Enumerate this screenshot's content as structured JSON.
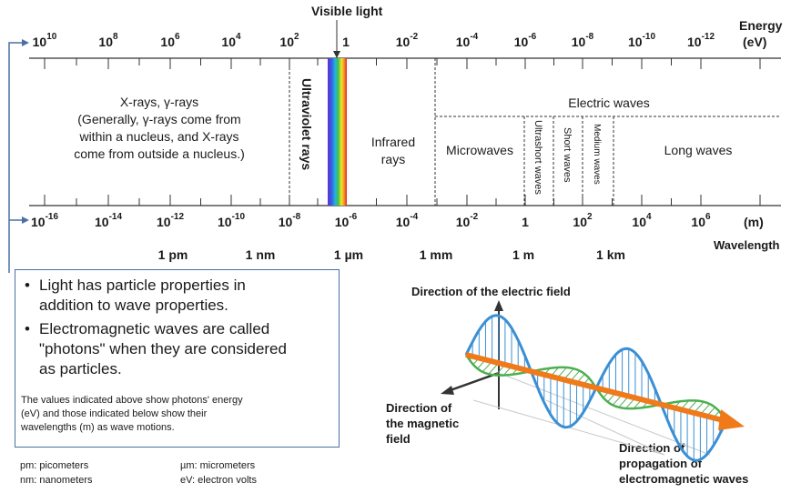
{
  "header": {
    "visible_light": "Visible light",
    "energy_label": "Energy",
    "energy_unit": "(eV)"
  },
  "energy_ticks": [
    {
      "base": "10",
      "exp": "10"
    },
    {
      "base": "10",
      "exp": "8"
    },
    {
      "base": "10",
      "exp": "6"
    },
    {
      "base": "10",
      "exp": "4"
    },
    {
      "base": "10",
      "exp": "2"
    },
    {
      "base": "1",
      "exp": ""
    },
    {
      "base": "10",
      "exp": "-2"
    },
    {
      "base": "10",
      "exp": "-4"
    },
    {
      "base": "10",
      "exp": "-6"
    },
    {
      "base": "10",
      "exp": "-8"
    },
    {
      "base": "10",
      "exp": "-10"
    },
    {
      "base": "10",
      "exp": "-12"
    }
  ],
  "wavelength_ticks": [
    {
      "base": "10",
      "exp": "-16"
    },
    {
      "base": "10",
      "exp": "-14"
    },
    {
      "base": "10",
      "exp": "-12"
    },
    {
      "base": "10",
      "exp": "-10"
    },
    {
      "base": "10",
      "exp": "-8"
    },
    {
      "base": "10",
      "exp": "-6"
    },
    {
      "base": "10",
      "exp": "-4"
    },
    {
      "base": "10",
      "exp": "-2"
    },
    {
      "base": "1",
      "exp": ""
    },
    {
      "base": "10",
      "exp": "2"
    },
    {
      "base": "10",
      "exp": "4"
    },
    {
      "base": "10",
      "exp": "6"
    }
  ],
  "wavelength_unit": "(m)",
  "wavelength_label": "Wavelength",
  "unit_marks": [
    "1 pm",
    "1 nm",
    "1 µm",
    "1 mm",
    "1 m",
    "1 km"
  ],
  "regions": {
    "xray_title": "X-rays, γ-rays",
    "xray_note_1": "(Generally, γ-rays come from",
    "xray_note_2": "within a nucleus, and X-rays",
    "xray_note_3": "come from outside a nucleus.)",
    "ultraviolet": "Ultraviolet rays",
    "infrared_1": "Infrared",
    "infrared_2": "rays",
    "electric_waves": "Electric waves",
    "microwaves": "Microwaves",
    "ultrashort": "Ultrashort waves",
    "short": "Short  waves",
    "medium": "Medium waves",
    "long": "Long waves"
  },
  "infobox": {
    "bullet1_line1": "Light has particle properties in",
    "bullet1_line2": "addition to wave properties.",
    "bullet2_line1": "Electromagnetic waves are called",
    "bullet2_line2": "\"photons\" when they are considered",
    "bullet2_line3": "as particles.",
    "note_line1": "The values indicated above show photons' energy",
    "note_line2": "(eV) and those indicated below show their",
    "note_line3": "wavelengths (m) as wave motions."
  },
  "legend": {
    "pm": "pm: picometers",
    "um": "µm: micrometers",
    "nm": "nm: nanometers",
    "ev": "eV: electron volts"
  },
  "wave_diagram": {
    "electric_field": "Direction of the electric field",
    "magnetic_1": "Direction of",
    "magnetic_2": "the magnetic",
    "magnetic_3": "field",
    "propagation_1": "Direction of",
    "propagation_2": "propagation of",
    "propagation_3": "electromagnetic waves"
  },
  "colors": {
    "connector": "#4a6fa5",
    "electric_wave": "#3a8fd4",
    "magnetic_wave": "#4caf50",
    "propagation_arrow": "#f07a1a"
  }
}
